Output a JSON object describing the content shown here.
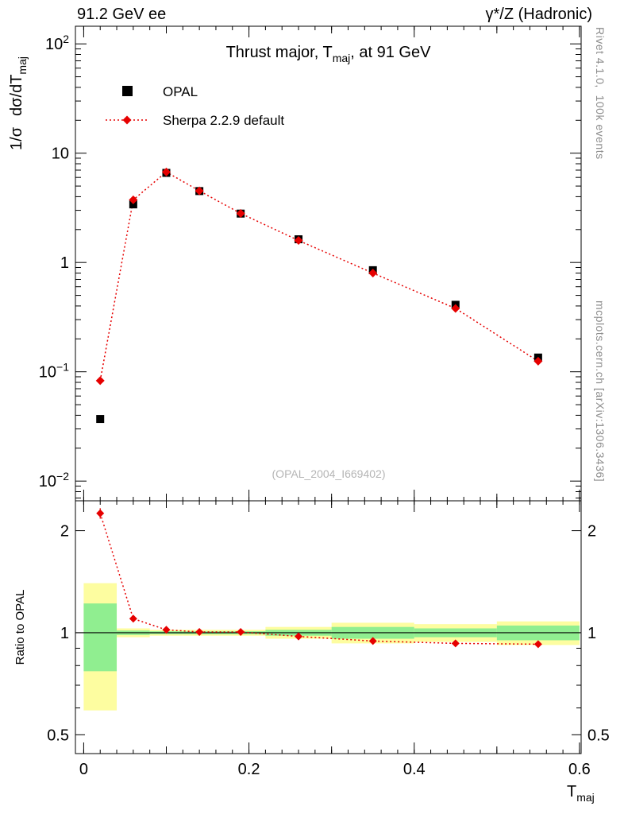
{
  "header": {
    "left": "91.2 GeV ee",
    "right": "γ*/Z (Hadronic)"
  },
  "side_notes": {
    "right_top": "Rivet 4.1.0,  100k events",
    "right_bottom": "mcplots.cern.ch [arXiv:1306.3436]"
  },
  "watermark": "(OPAL_2004_I669402)",
  "legend": [
    {
      "label": "OPAL",
      "marker": "black-filled-square"
    },
    {
      "label": "Sherpa 2.2.9 default",
      "marker": "red-diamond-dotted-line"
    }
  ],
  "chart_data": {
    "type": "line",
    "title": "Thrust major, T_maj, at 91 GeV",
    "title_parts": [
      "Thrust major, T",
      "maj",
      ", at 91 GeV"
    ],
    "ylabel": "1/σ dσ/dT_maj",
    "ylabel_parts": [
      "1/σ",
      "dσ/dT",
      "maj"
    ],
    "xlabel": "T_maj",
    "xlabel_parts": [
      "T",
      "maj"
    ],
    "ratio_ylabel": "Ratio to OPAL",
    "x_axis": {
      "lim": [
        -0.01,
        0.602
      ],
      "major_ticks": [
        0,
        0.2,
        0.4,
        0.6
      ],
      "major_labels": [
        "0",
        "0.2",
        "0.4",
        "0.6"
      ],
      "medium_ticks": [
        0.1,
        0.3,
        0.5
      ],
      "minor_step": 0.02,
      "minor_max": 0.6
    },
    "y_axis": {
      "scale": "log",
      "lim": [
        0.0066,
        145
      ],
      "decades": [
        0.01,
        0.1,
        1,
        10,
        100
      ],
      "decade_render": [
        {
          "base": "10",
          "sup": "−2"
        },
        {
          "base": "10",
          "sup": "−1"
        },
        {
          "base": "1",
          "sup": ""
        },
        {
          "base": "10",
          "sup": ""
        },
        {
          "base": "10",
          "sup": "2"
        }
      ]
    },
    "ratio_axis": {
      "scale": "log",
      "lim": [
        0.44,
        2.45
      ],
      "ticks": [
        0.5,
        1,
        2
      ],
      "tick_labels": [
        "0.5",
        "1",
        "2"
      ],
      "minor": [
        0.6,
        0.7,
        0.8,
        0.9
      ]
    },
    "bin_edges": [
      0.0,
      0.04,
      0.08,
      0.12,
      0.16,
      0.22,
      0.3,
      0.4,
      0.5,
      0.6
    ],
    "x": [
      0.02,
      0.06,
      0.1,
      0.14,
      0.19,
      0.26,
      0.35,
      0.45,
      0.55
    ],
    "series": [
      {
        "name": "OPAL",
        "marker": "square",
        "color": "#000000",
        "values": [
          0.037,
          3.4,
          6.6,
          4.5,
          2.8,
          1.63,
          0.85,
          0.41,
          0.135
        ],
        "yerr": [
          0.001,
          0.06,
          0.08,
          0.06,
          0.04,
          0.03,
          0.015,
          0.01,
          0.005
        ]
      },
      {
        "name": "Sherpa 2.2.9 default",
        "marker": "diamond",
        "color": "#e60000",
        "line": "dotted",
        "values": [
          0.083,
          3.74,
          6.73,
          4.52,
          2.81,
          1.59,
          0.8,
          0.38,
          0.125
        ],
        "yerr": [
          0.002,
          0.04,
          0.05,
          0.04,
          0.03,
          0.02,
          0.012,
          0.008,
          0.004
        ]
      }
    ],
    "ratio": {
      "name": "Sherpa 2.2.9 default / OPAL",
      "values": [
        2.25,
        1.1,
        1.02,
        1.005,
        1.005,
        0.975,
        0.945,
        0.93,
        0.925
      ],
      "yerr": [
        0.08,
        0.02,
        0.012,
        0.01,
        0.008,
        0.01,
        0.012,
        0.015,
        0.02
      ]
    },
    "bands": {
      "yellow": {
        "color": "#fdfda0",
        "lo": [
          0.59,
          0.97,
          0.98,
          0.98,
          0.98,
          0.96,
          0.93,
          0.94,
          0.92
        ],
        "hi": [
          1.4,
          1.03,
          1.02,
          1.02,
          1.02,
          1.04,
          1.07,
          1.06,
          1.08
        ]
      },
      "green": {
        "color": "#90ee90",
        "lo": [
          0.77,
          0.985,
          0.99,
          0.99,
          0.99,
          0.98,
          0.96,
          0.97,
          0.95
        ],
        "hi": [
          1.22,
          1.015,
          1.01,
          1.01,
          1.01,
          1.02,
          1.04,
          1.03,
          1.05
        ]
      }
    },
    "ref_line": 1.0,
    "colors": {
      "mc_red": "#e60000",
      "band_yellow": "#fdfda0",
      "band_green": "#90ee90",
      "watermark_gray": "#b5b5b5",
      "side_note_gray": "#8c8c8c"
    }
  }
}
